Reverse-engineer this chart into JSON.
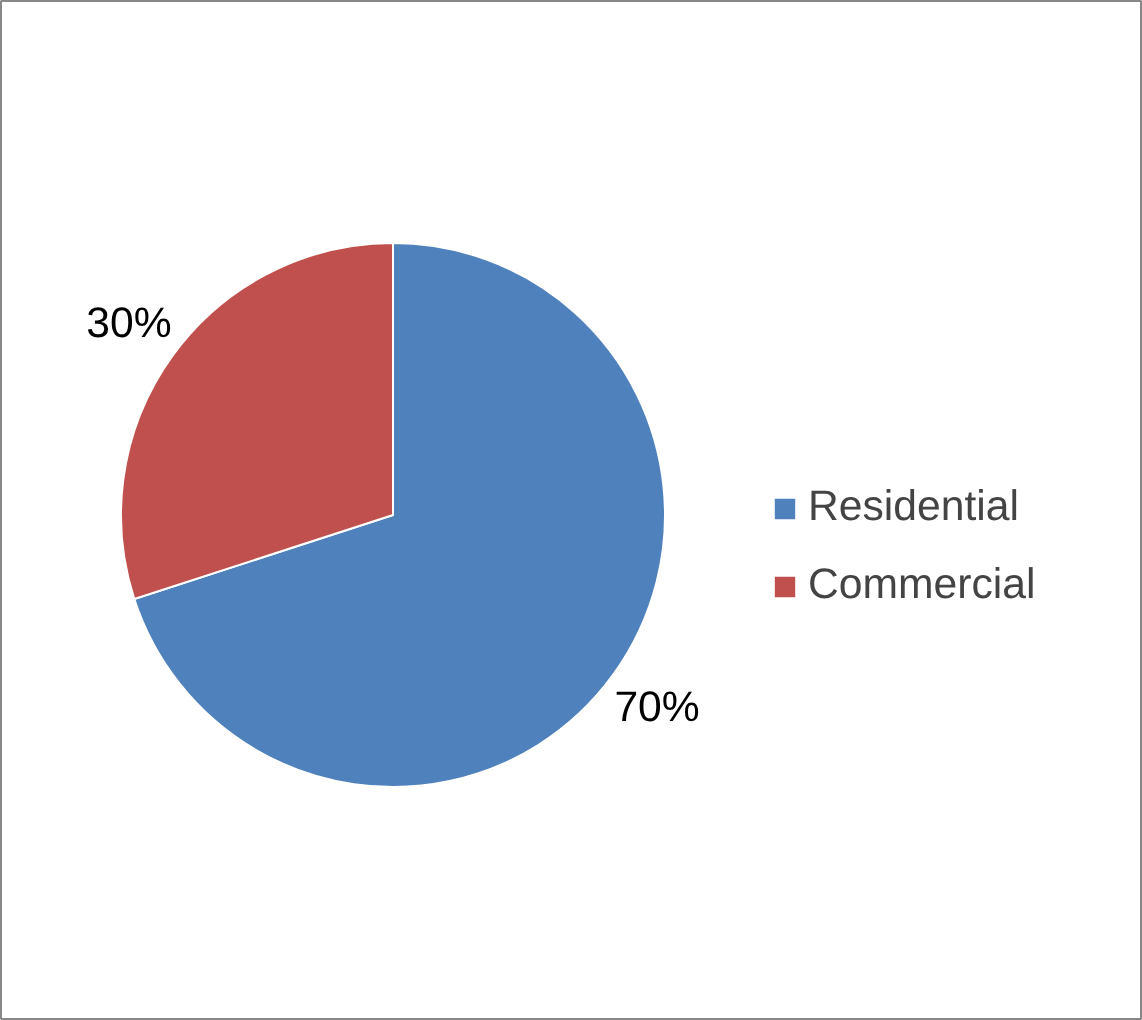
{
  "chart_data": {
    "type": "pie",
    "categories": [
      "Residential",
      "Commercial"
    ],
    "values": [
      70,
      30
    ],
    "colors": [
      "#4f81bd",
      "#c0504d"
    ],
    "value_labels": [
      "70%",
      "30%"
    ],
    "legend": "right"
  }
}
